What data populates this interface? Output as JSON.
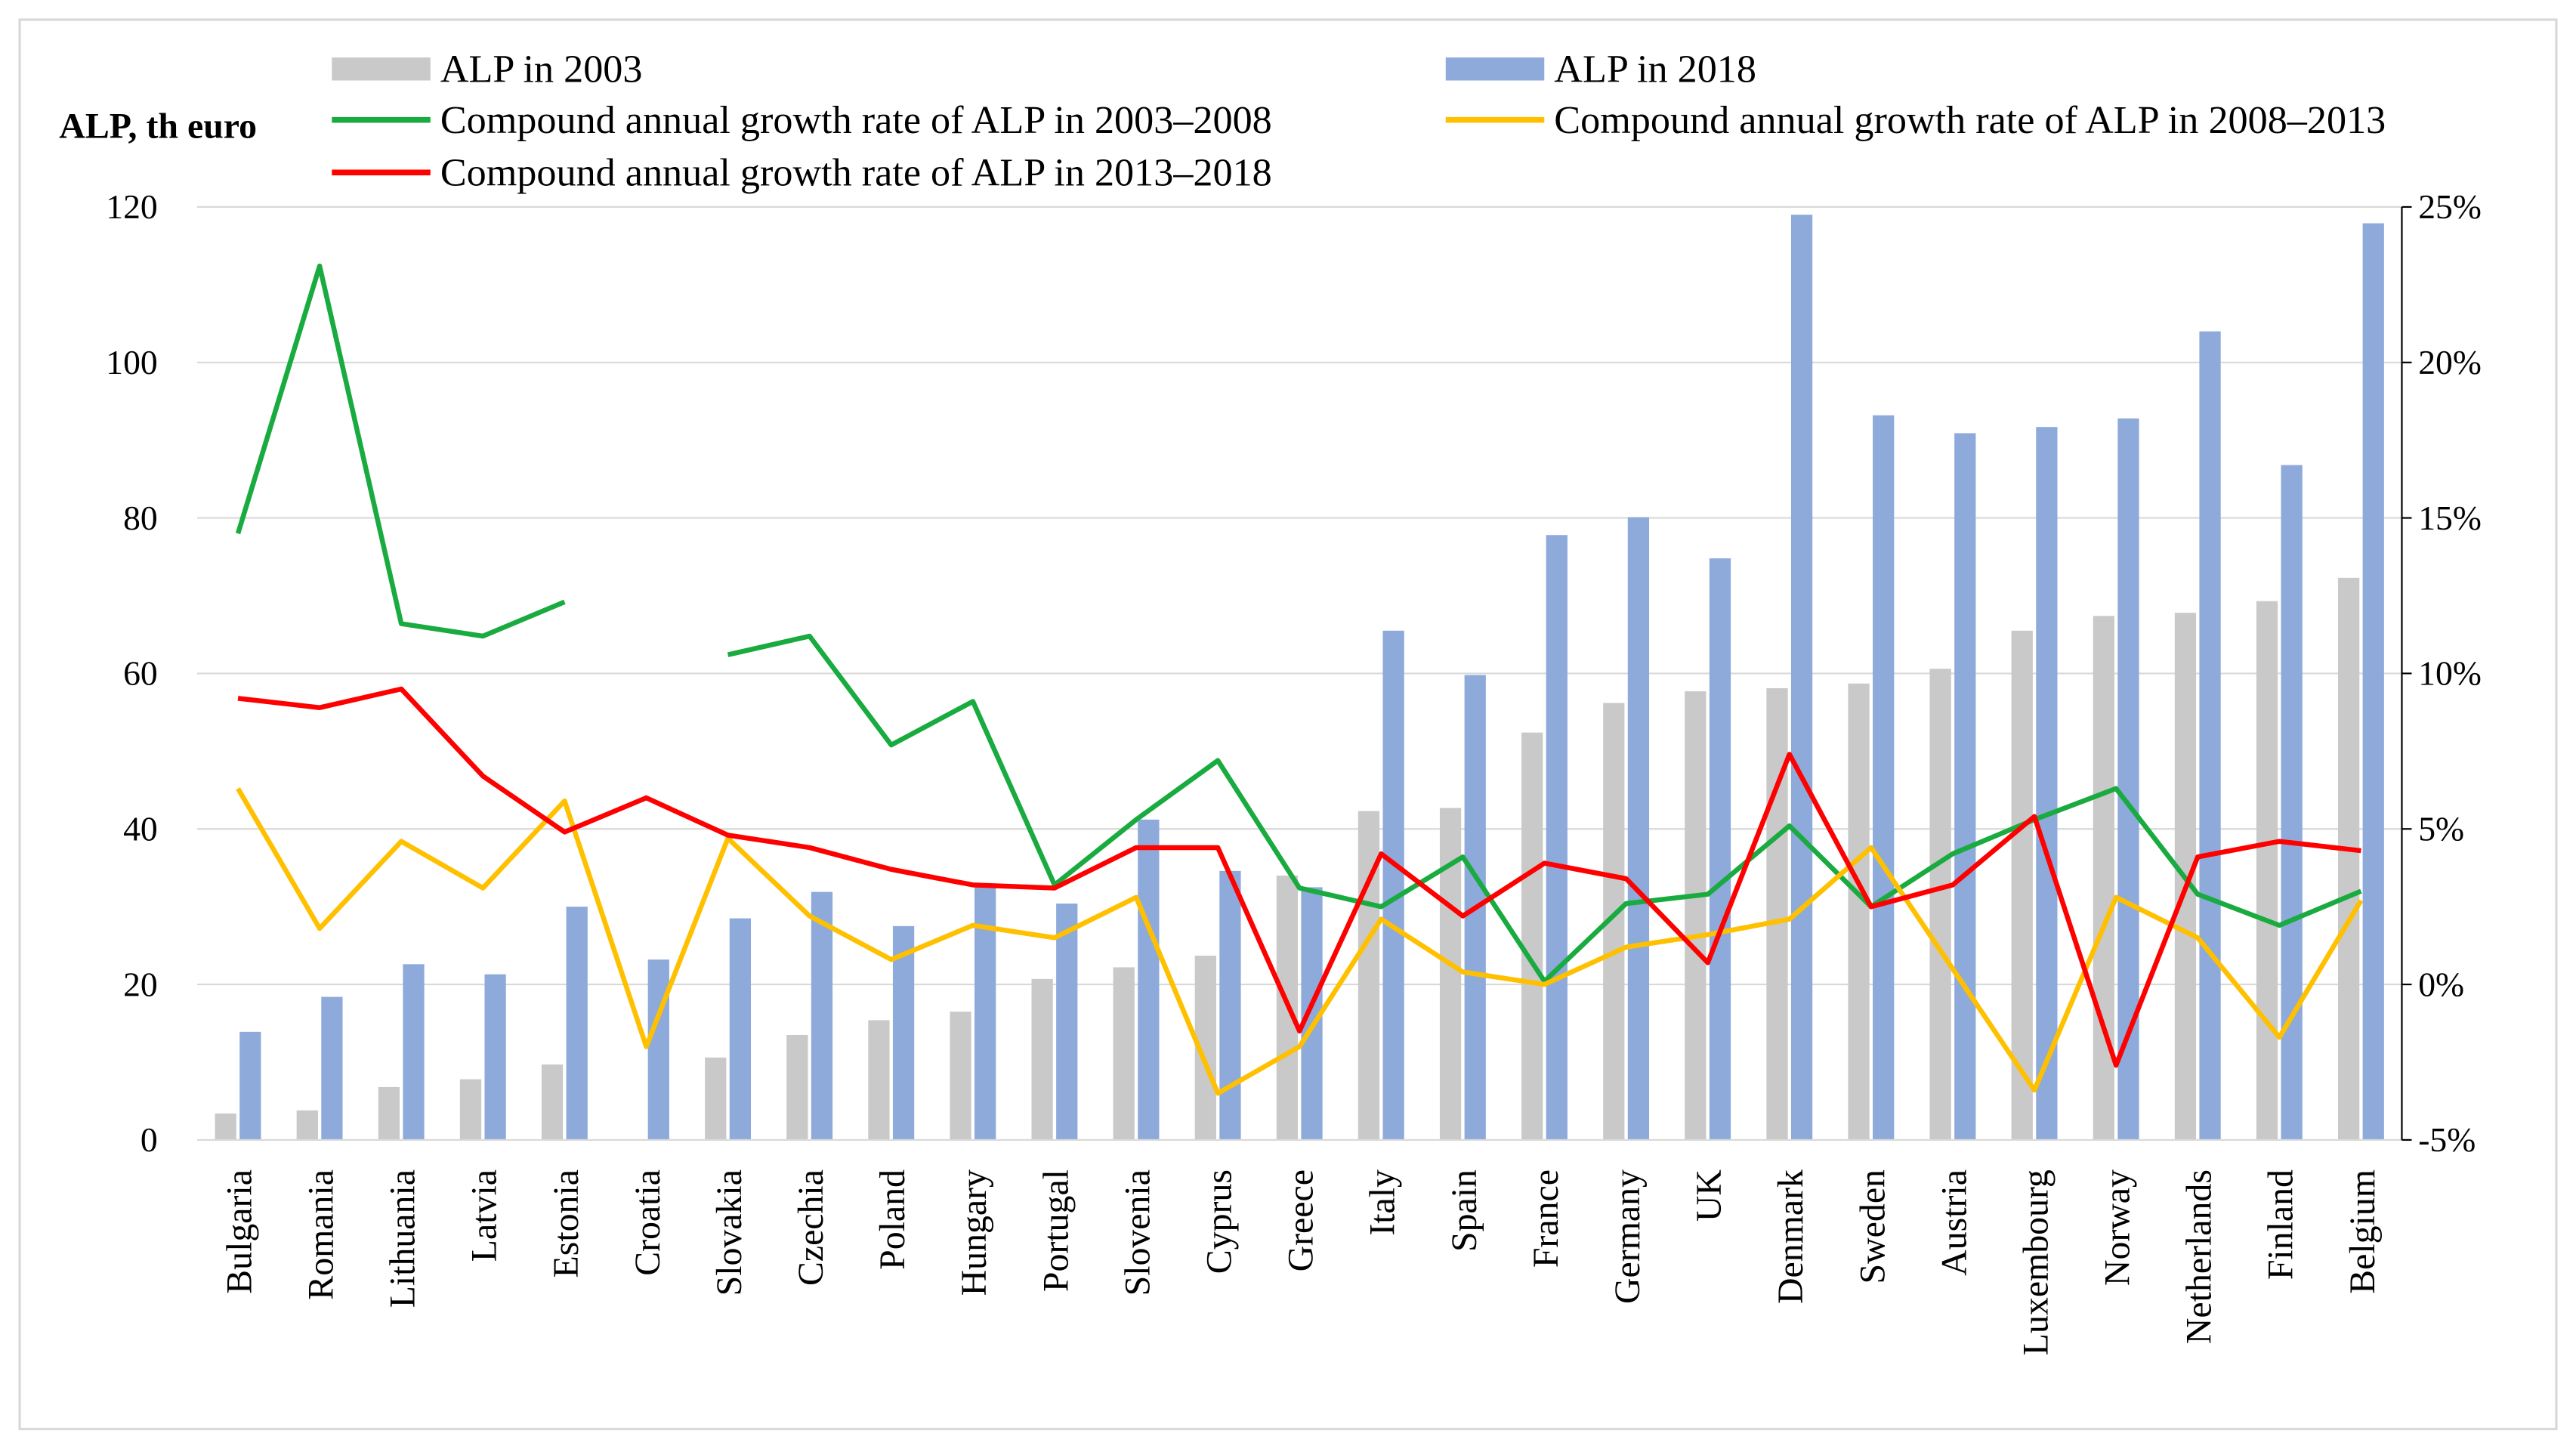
{
  "chart_data": {
    "type": "bar",
    "ylabel": "ALP, th euro",
    "ylim": [
      0,
      120
    ],
    "yticks": [
      "0",
      "20",
      "40",
      "60",
      "80",
      "100",
      "120"
    ],
    "y2lim": [
      -5,
      25
    ],
    "y2ticks": [
      "-5%",
      "0%",
      "5%",
      "10%",
      "15%",
      "20%",
      "25%"
    ],
    "grid": true,
    "legend_placement": "top",
    "categories": [
      "Bulgaria",
      "Romania",
      "Lithuania",
      "Latvia",
      "Estonia",
      "Croatia",
      "Slovakia",
      "Czechia",
      "Poland",
      "Hungary",
      "Portugal",
      "Slovenia",
      "Cyprus",
      "Greece",
      "Italy",
      "Spain",
      "France",
      "Germany",
      "UK",
      "Denmark",
      "Sweden",
      "Austria",
      "Luxembourg",
      "Norway",
      "Netherlands",
      "Finland",
      "Belgium"
    ],
    "bar_series": [
      {
        "name": "ALP in 2003",
        "color": "#c9c9c9",
        "values": [
          3.4,
          3.8,
          6.8,
          7.8,
          9.7,
          null,
          10.6,
          13.5,
          15.4,
          16.5,
          20.7,
          22.2,
          23.7,
          34.0,
          42.3,
          42.7,
          52.4,
          56.2,
          57.7,
          58.1,
          58.7,
          60.6,
          65.5,
          67.4,
          67.8,
          69.3,
          72.3
        ]
      },
      {
        "name": "ALP in 2018",
        "color": "#8eaadb",
        "values": [
          13.9,
          18.4,
          22.6,
          21.3,
          30.0,
          23.2,
          28.5,
          31.9,
          27.5,
          32.5,
          30.4,
          41.2,
          34.6,
          32.5,
          65.5,
          59.8,
          77.8,
          80.1,
          74.8,
          119.0,
          93.2,
          90.9,
          91.7,
          92.8,
          104.0,
          86.8,
          117.9
        ]
      }
    ],
    "line_series": [
      {
        "name": "Compound annual growth rate of ALP in 2003–2008",
        "color": "#1aab40",
        "axis": "right",
        "values": [
          14.5,
          23.1,
          11.6,
          11.2,
          12.3,
          null,
          10.6,
          11.2,
          7.7,
          9.1,
          3.2,
          5.3,
          7.2,
          3.1,
          2.5,
          4.1,
          0.1,
          2.6,
          2.9,
          5.1,
          2.5,
          4.2,
          5.3,
          6.3,
          2.9,
          1.9,
          3.0
        ]
      },
      {
        "name": "Compound annual growth rate of ALP in 2008–2013",
        "color": "#ffc000",
        "axis": "right",
        "values": [
          6.3,
          1.8,
          4.6,
          3.1,
          5.9,
          -2.0,
          4.7,
          2.2,
          0.8,
          1.9,
          1.5,
          2.8,
          -3.5,
          -2.0,
          2.1,
          0.4,
          0.0,
          1.2,
          1.6,
          2.1,
          4.4,
          0.5,
          -3.4,
          2.8,
          1.5,
          -1.7,
          2.7
        ]
      },
      {
        "name": "Compound annual growth rate of ALP in 2013–2018",
        "color": "#ff0000",
        "axis": "right",
        "values": [
          9.2,
          8.9,
          9.5,
          6.7,
          4.9,
          6.0,
          4.8,
          4.4,
          3.7,
          3.2,
          3.1,
          4.4,
          4.4,
          -1.5,
          4.2,
          2.2,
          3.9,
          3.4,
          0.7,
          7.4,
          2.5,
          3.2,
          5.4,
          -2.6,
          4.1,
          4.6,
          4.3
        ]
      }
    ]
  }
}
